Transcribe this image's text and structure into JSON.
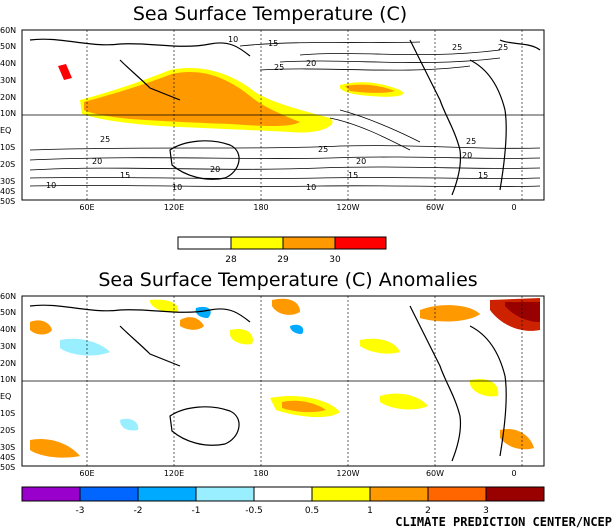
{
  "panels": [
    {
      "id": "sst",
      "title": "Sea Surface Temperature (C)",
      "lat_ticks": [
        "60N",
        "50N",
        "40N",
        "30N",
        "20N",
        "10N",
        "EQ",
        "10S",
        "20S",
        "30S",
        "40S",
        "50S"
      ],
      "lon_ticks": [
        "60E",
        "120E",
        "180",
        "120W",
        "60W",
        "0"
      ],
      "contour_labels": [
        "10",
        "15",
        "20",
        "25",
        "25",
        "25",
        "20",
        "25",
        "20",
        "15",
        "10",
        "25",
        "20",
        "15",
        "10",
        "15",
        "10",
        "20",
        "25"
      ],
      "colorbar": {
        "colors": [
          "#ffffff",
          "#ffff00",
          "#ff9900",
          "#ff0000"
        ],
        "labels": [
          "28",
          "29",
          "30"
        ]
      }
    },
    {
      "id": "anom",
      "title": "Sea Surface Temperature (C) Anomalies",
      "lat_ticks": [
        "60N",
        "50N",
        "40N",
        "30N",
        "20N",
        "10N",
        "EQ",
        "10S",
        "20S",
        "30S",
        "40S",
        "50S"
      ],
      "lon_ticks": [
        "60E",
        "120E",
        "180",
        "120W",
        "60W",
        "0"
      ],
      "colorbar": {
        "colors": [
          "#9900cc",
          "#0066ff",
          "#00aaff",
          "#99eeff",
          "#ffffff",
          "#ffff00",
          "#ff9900",
          "#ff6600",
          "#cc2200",
          "#990000"
        ],
        "labels": [
          "-3",
          "-2",
          "-1",
          "-0.5",
          "0.5",
          "1",
          "2",
          "3"
        ]
      }
    }
  ],
  "credit": "CLIMATE PREDICTION CENTER/NCEP"
}
